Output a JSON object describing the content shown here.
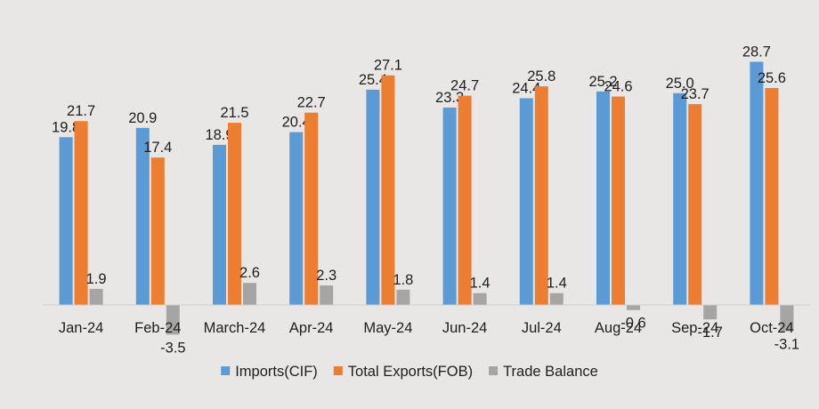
{
  "chart_data": {
    "type": "bar",
    "categories": [
      "Jan-24",
      "Feb-24",
      "March-24",
      "Apr-24",
      "May-24",
      "Jun-24",
      "Jul-24",
      "Aug-24",
      "Sep-24",
      "Oct-24"
    ],
    "series": [
      {
        "name": "Imports(CIF)",
        "color": "#5b9bd5",
        "values": [
          19.8,
          20.9,
          18.9,
          20.4,
          25.4,
          23.3,
          24.4,
          25.2,
          25.0,
          28.7
        ],
        "labels": [
          "19.8",
          "20.9",
          "18.9",
          "20.4",
          "25.4",
          "23.3",
          "24.4",
          "25.2",
          "25.0",
          "28.7"
        ]
      },
      {
        "name": "Total Exports(FOB)",
        "color": "#ed7d31",
        "values": [
          21.7,
          17.4,
          21.5,
          22.7,
          27.1,
          24.7,
          25.8,
          24.6,
          23.7,
          25.6
        ],
        "labels": [
          "21.7",
          "17.4",
          "21.5",
          "22.7",
          "27.1",
          "24.7",
          "25.8",
          "24.6",
          "23.7",
          "25.6"
        ]
      },
      {
        "name": "Trade Balance",
        "color": "#a5a5a5",
        "values": [
          1.9,
          -3.5,
          2.6,
          2.3,
          1.8,
          1.4,
          1.4,
          -0.6,
          -1.7,
          -3.1
        ],
        "labels": [
          "1.9",
          "-3.5",
          "2.6",
          "2.3",
          "1.8",
          "1.4",
          "1.4",
          "-0.6",
          "-1.7",
          "-3.1"
        ]
      }
    ],
    "title": "",
    "xlabel": "",
    "ylabel": "",
    "ylim": [
      -4,
      30
    ],
    "grid": false,
    "legend_position": "bottom",
    "background": "#e9e6e6"
  }
}
